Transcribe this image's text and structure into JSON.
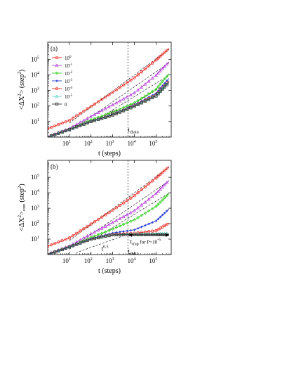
{
  "chart_data": [
    {
      "type": "line",
      "panel_label": "(a)",
      "xlabel": "t (steps)",
      "ylabel_main": "<ΔX",
      "ylabel_sup": "2",
      "ylabel_rest": "> (step",
      "ylabel_sup2": "2",
      "ylabel_close": ")",
      "xscale": "log",
      "yscale": "log",
      "xlim": [
        1,
        100000
      ],
      "ylim": [
        1,
        1000000
      ],
      "xticks": [
        10,
        100,
        1000,
        10000,
        100000
      ],
      "xtick_labels": [
        "10",
        "10",
        "10",
        "10",
        "10"
      ],
      "xtick_exps": [
        "1",
        "2",
        "3",
        "4",
        "5"
      ],
      "yticks": [
        10,
        100,
        1000,
        10000,
        100000
      ],
      "ytick_labels": [
        "10",
        "10",
        "10",
        "10",
        "10"
      ],
      "ytick_exps": [
        "1",
        "2",
        "3",
        "4",
        "5"
      ],
      "grid": false,
      "legend_position": "top-left",
      "annotations": [
        {
          "id": "t05",
          "base": "t",
          "sup": "0.5",
          "x": 800,
          "y": 25
        },
        {
          "id": "tchain",
          "base": "t",
          "sub": "chain",
          "x": 5000,
          "y": 2.2
        }
      ],
      "vline_x": 5000,
      "series": [
        {
          "name": "10",
          "exp": "0",
          "color": "#e8231c",
          "marker": "circle",
          "x": [
            1,
            10,
            100,
            1000,
            10000,
            100000,
            400000
          ],
          "y": [
            3.5,
            12,
            95,
            750,
            6500,
            90000,
            500000
          ]
        },
        {
          "name": "10",
          "exp": "-1",
          "color": "#b43ed8",
          "marker": "triangle",
          "x": [
            1,
            10,
            100,
            1000,
            10000,
            100000,
            400000
          ],
          "y": [
            1.1,
            3.6,
            22,
            120,
            700,
            9500,
            70000
          ]
        },
        {
          "name": "10",
          "exp": "-2",
          "color": "#39d024",
          "marker": "diamond",
          "x": [
            1,
            10,
            100,
            1000,
            10000,
            100000,
            400000
          ],
          "y": [
            1,
            3.1,
            13,
            40,
            160,
            1200,
            12000
          ]
        },
        {
          "name": "10",
          "exp": "-3",
          "color": "#2a3ad6",
          "marker": "star",
          "x": [
            1,
            10,
            100,
            1000,
            10000,
            100000,
            400000
          ],
          "y": [
            1,
            3.1,
            10.5,
            30,
            120,
            650,
            6000
          ]
        },
        {
          "name": "10",
          "exp": "-4",
          "color": "#e8231c",
          "marker": "circle",
          "x": [
            1,
            10,
            100,
            1000,
            10000,
            100000,
            400000
          ],
          "y": [
            1,
            3.1,
            10,
            28,
            105,
            520,
            4200
          ]
        },
        {
          "name": "10",
          "exp": "-5",
          "color": "#5fd6bf",
          "marker": "triangle",
          "x": [
            1,
            10,
            100,
            1000,
            10000,
            100000,
            400000
          ],
          "y": [
            1,
            3.1,
            10,
            27,
            100,
            480,
            3700
          ]
        },
        {
          "name": "0",
          "exp": "",
          "color": "#333333",
          "marker": "square",
          "x": [
            1,
            10,
            100,
            1000,
            10000,
            100000,
            400000
          ],
          "y": [
            1,
            3.1,
            10,
            26,
            95,
            440,
            3300
          ]
        }
      ],
      "guide_lines": [
        {
          "x": [
            10,
            400000
          ],
          "y": [
            8,
            450000
          ]
        },
        {
          "x": [
            10,
            400000
          ],
          "y": [
            2.2,
            60000
          ]
        },
        {
          "x": [
            200,
            400000
          ],
          "y": [
            14,
            9500
          ]
        },
        {
          "x": [
            2000,
            400000
          ],
          "y": [
            38,
            3500
          ]
        }
      ]
    },
    {
      "type": "line",
      "panel_label": "(b)",
      "xlabel": "t (steps)",
      "ylabel_main": "<ΔX",
      "ylabel_sup": "2",
      "ylabel_rest": ">",
      "ylabel_sub": "core",
      "ylabel_rest2": " (step",
      "ylabel_sup2": "2",
      "ylabel_close": ")",
      "xscale": "log",
      "yscale": "log",
      "xlim": [
        1,
        100000
      ],
      "ylim": [
        1,
        1000000
      ],
      "xticks": [
        10,
        100,
        1000,
        10000,
        100000
      ],
      "xtick_labels": [
        "10",
        "10",
        "10",
        "10",
        "10"
      ],
      "xtick_exps": [
        "1",
        "2",
        "3",
        "4",
        "5"
      ],
      "yticks": [
        10,
        100,
        1000,
        10000,
        100000
      ],
      "ytick_labels": [
        "10",
        "10",
        "10",
        "10",
        "10"
      ],
      "ytick_exps": [
        "1",
        "2",
        "3",
        "4",
        "5"
      ],
      "grid": false,
      "annotations": [
        {
          "id": "t05b",
          "base": "t",
          "sup": "0.5",
          "x": 300,
          "y": 1.8
        },
        {
          "id": "tchainb",
          "base": "t",
          "sub": "chain",
          "x": 5000,
          "y": 1.2
        },
        {
          "id": "ttrap",
          "base": "τ",
          "sub": "trap",
          "rest": " for P=10",
          "sup": "-5",
          "x": 6000,
          "y": 5
        }
      ],
      "vline_x": 5000,
      "trap_arrow": {
        "x1": 5000,
        "x2": 400000,
        "y": 18
      },
      "series": [
        {
          "name": "10",
          "exp": "0",
          "color": "#e8231c",
          "marker": "circle",
          "x": [
            1,
            10,
            100,
            1000,
            10000,
            100000,
            400000
          ],
          "y": [
            3.5,
            12,
            95,
            750,
            6500,
            90000,
            500000
          ]
        },
        {
          "name": "10",
          "exp": "-1",
          "color": "#b43ed8",
          "marker": "triangle",
          "x": [
            1,
            10,
            100,
            1000,
            10000,
            100000,
            400000
          ],
          "y": [
            1.1,
            3.6,
            22,
            120,
            700,
            9000,
            65000
          ]
        },
        {
          "name": "10",
          "exp": "-2",
          "color": "#39d024",
          "marker": "diamond",
          "x": [
            1,
            10,
            100,
            1000,
            10000,
            100000,
            400000
          ],
          "y": [
            1,
            3.1,
            13,
            45,
            180,
            1300,
            9000
          ]
        },
        {
          "name": "10",
          "exp": "-3",
          "color": "#2a3ad6",
          "marker": "star",
          "x": [
            1,
            10,
            100,
            1000,
            10000,
            100000,
            400000
          ],
          "y": [
            1,
            3.1,
            10.5,
            25,
            40,
            150,
            900
          ]
        },
        {
          "name": "10",
          "exp": "-4",
          "color": "#e8231c",
          "marker": "circle",
          "x": [
            1,
            10,
            100,
            1000,
            10000,
            100000,
            400000
          ],
          "y": [
            1,
            3.1,
            10,
            20,
            24,
            35,
            110
          ]
        },
        {
          "name": "10",
          "exp": "-5",
          "color": "#5fd6bf",
          "marker": "triangle",
          "x": [
            1,
            10,
            100,
            1000,
            10000,
            100000,
            400000
          ],
          "y": [
            1,
            3.1,
            10,
            19,
            21,
            22,
            23
          ]
        },
        {
          "name": "0",
          "exp": "",
          "color": "#333333",
          "marker": "square",
          "x": [
            1,
            10,
            100,
            1000,
            10000,
            100000,
            400000
          ],
          "y": [
            1,
            3.1,
            10,
            19,
            20,
            20,
            20
          ]
        }
      ],
      "guide_lines": [
        {
          "x": [
            10,
            400000
          ],
          "y": [
            8,
            450000
          ]
        },
        {
          "x": [
            10,
            400000
          ],
          "y": [
            2.2,
            60000
          ]
        },
        {
          "x": [
            200,
            400000
          ],
          "y": [
            14,
            9500
          ]
        },
        {
          "x": [
            20,
            3000
          ],
          "y": [
            1.3,
            16
          ]
        }
      ]
    }
  ]
}
